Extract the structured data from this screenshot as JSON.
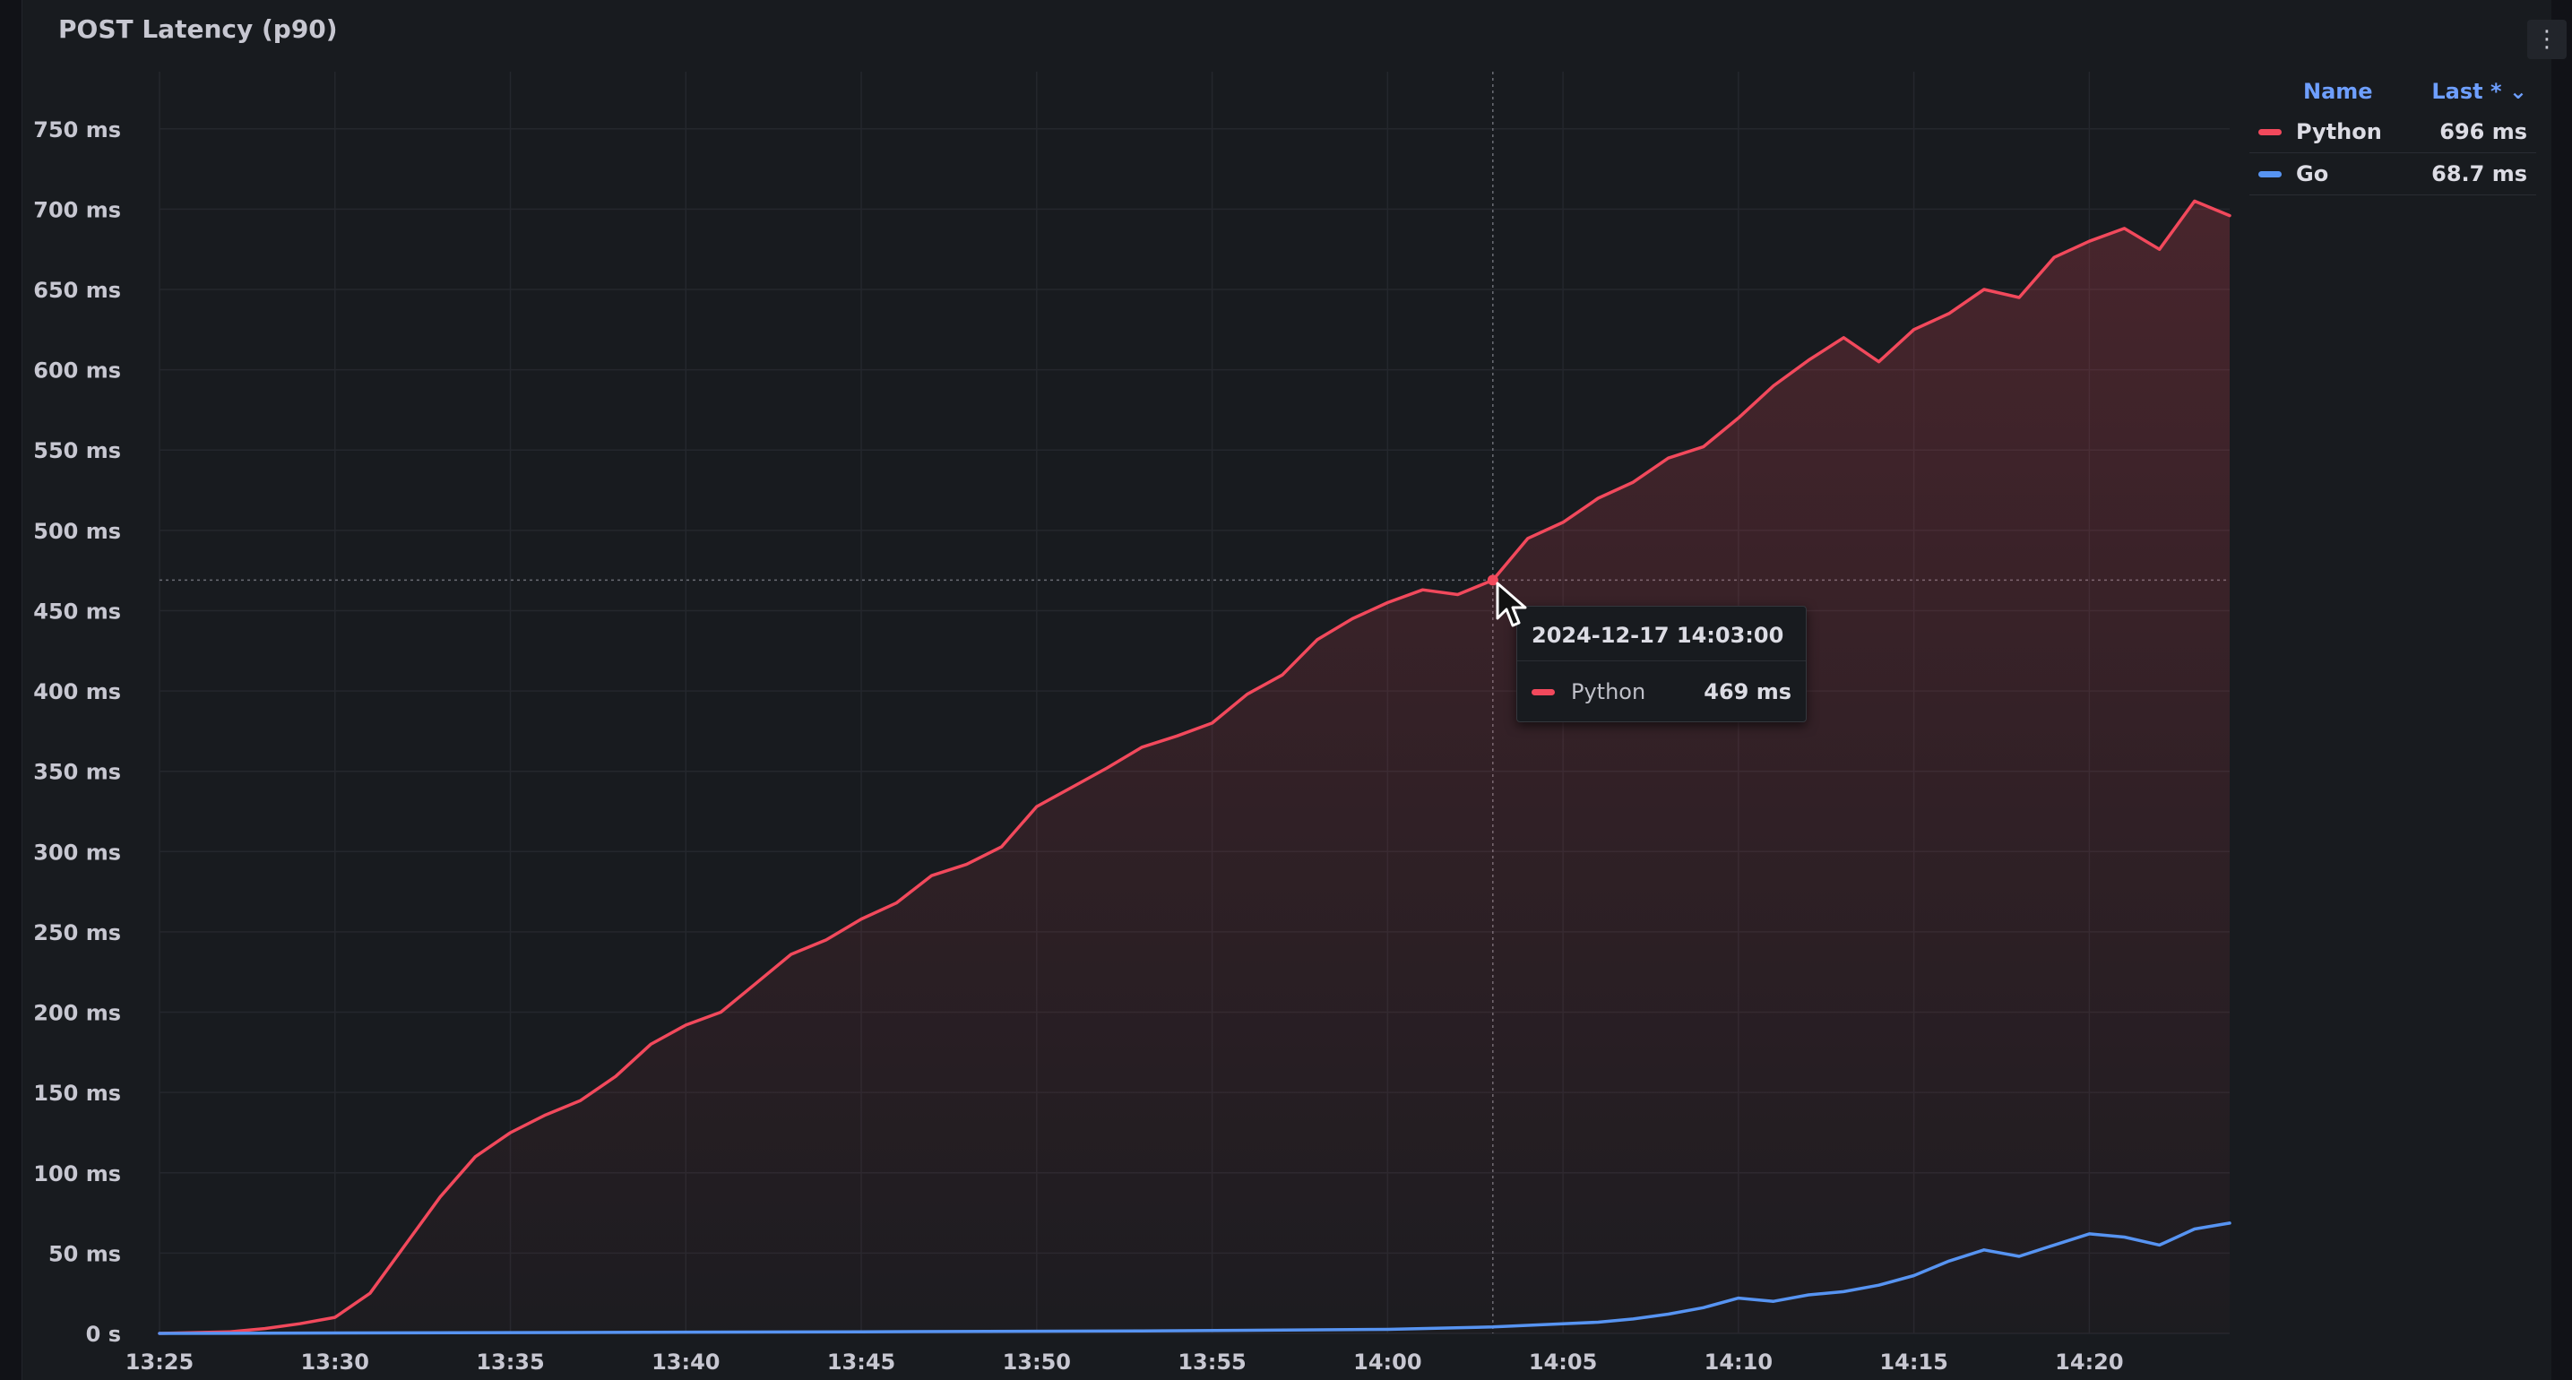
{
  "panel": {
    "title": "POST Latency (p90)",
    "menu_icon": "vertical-dots-icon"
  },
  "legend": {
    "name_header": "Name",
    "last_header": "Last * ⌄",
    "items": [
      {
        "name": "Python",
        "value": "696 ms",
        "color": "#f2495c"
      },
      {
        "name": "Go",
        "value": "68.7 ms",
        "color": "#5794f2"
      }
    ]
  },
  "tooltip": {
    "time": "2024-12-17 14:03:00",
    "series": "Python",
    "value": "469 ms",
    "color": "#f2495c"
  },
  "chart_data": {
    "type": "line",
    "title": "POST Latency (p90)",
    "xlabel": "",
    "ylabel": "",
    "x_unit": "minutes after 13:25",
    "xlim": [
      0,
      59
    ],
    "ylim": [
      0,
      780
    ],
    "y_ticks": [
      0,
      50,
      100,
      150,
      200,
      250,
      300,
      350,
      400,
      450,
      500,
      550,
      600,
      650,
      700,
      750
    ],
    "y_tick_labels": [
      "0 s",
      "50 ms",
      "100 ms",
      "150 ms",
      "200 ms",
      "250 ms",
      "300 ms",
      "350 ms",
      "400 ms",
      "450 ms",
      "500 ms",
      "550 ms",
      "600 ms",
      "650 ms",
      "700 ms",
      "750 ms"
    ],
    "x_ticks": [
      "13:25",
      "13:30",
      "13:35",
      "13:40",
      "13:45",
      "13:50",
      "13:55",
      "14:00",
      "14:05",
      "14:10",
      "14:15",
      "14:20"
    ],
    "grid": true,
    "legend_position": "top-right",
    "cursor_time": "14:03",
    "series": [
      {
        "name": "Python",
        "color": "#f2495c",
        "fill": true,
        "points": [
          [
            0,
            0
          ],
          [
            2,
            1
          ],
          [
            3,
            3
          ],
          [
            4,
            6
          ],
          [
            5,
            10
          ],
          [
            6,
            25
          ],
          [
            7,
            55
          ],
          [
            8,
            85
          ],
          [
            9,
            110
          ],
          [
            10,
            125
          ],
          [
            11,
            136
          ],
          [
            12,
            145
          ],
          [
            13,
            160
          ],
          [
            14,
            180
          ],
          [
            15,
            192
          ],
          [
            16,
            200
          ],
          [
            17,
            218
          ],
          [
            18,
            236
          ],
          [
            19,
            245
          ],
          [
            20,
            258
          ],
          [
            21,
            268
          ],
          [
            22,
            285
          ],
          [
            23,
            292
          ],
          [
            24,
            303
          ],
          [
            25,
            328
          ],
          [
            26,
            340
          ],
          [
            27,
            352
          ],
          [
            28,
            365
          ],
          [
            29,
            372
          ],
          [
            30,
            380
          ],
          [
            31,
            398
          ],
          [
            32,
            410
          ],
          [
            33,
            432
          ],
          [
            34,
            445
          ],
          [
            35,
            455
          ],
          [
            36,
            463
          ],
          [
            37,
            460
          ],
          [
            38,
            469
          ],
          [
            39,
            495
          ],
          [
            40,
            505
          ],
          [
            41,
            520
          ],
          [
            42,
            530
          ],
          [
            43,
            545
          ],
          [
            44,
            552
          ],
          [
            45,
            570
          ],
          [
            46,
            590
          ],
          [
            47,
            606
          ],
          [
            48,
            620
          ],
          [
            49,
            605
          ],
          [
            50,
            625
          ],
          [
            51,
            635
          ],
          [
            52,
            650
          ],
          [
            53,
            645
          ],
          [
            54,
            670
          ],
          [
            55,
            680
          ],
          [
            56,
            688
          ],
          [
            57,
            675
          ],
          [
            58,
            705
          ],
          [
            59,
            696
          ]
        ]
      },
      {
        "name": "Go",
        "color": "#5794f2",
        "fill": false,
        "points": [
          [
            0,
            0
          ],
          [
            10,
            0.5
          ],
          [
            20,
            1
          ],
          [
            28,
            1.5
          ],
          [
            35,
            2.5
          ],
          [
            38,
            4
          ],
          [
            39,
            5
          ],
          [
            40,
            6
          ],
          [
            41,
            7
          ],
          [
            42,
            9
          ],
          [
            43,
            12
          ],
          [
            44,
            16
          ],
          [
            45,
            22
          ],
          [
            46,
            20
          ],
          [
            47,
            24
          ],
          [
            48,
            26
          ],
          [
            49,
            30
          ],
          [
            50,
            36
          ],
          [
            51,
            45
          ],
          [
            52,
            52
          ],
          [
            53,
            48
          ],
          [
            54,
            55
          ],
          [
            55,
            62
          ],
          [
            56,
            60
          ],
          [
            57,
            55
          ],
          [
            58,
            65
          ],
          [
            59,
            68.7
          ]
        ]
      }
    ]
  }
}
